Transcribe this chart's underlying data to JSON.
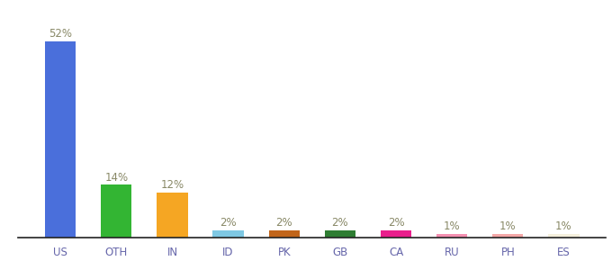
{
  "categories": [
    "US",
    "OTH",
    "IN",
    "ID",
    "PK",
    "GB",
    "CA",
    "RU",
    "PH",
    "ES"
  ],
  "values": [
    52,
    14,
    12,
    2,
    2,
    2,
    2,
    1,
    1,
    1
  ],
  "labels": [
    "52%",
    "14%",
    "12%",
    "2%",
    "2%",
    "2%",
    "2%",
    "1%",
    "1%",
    "1%"
  ],
  "bar_colors": [
    "#4a6fdb",
    "#33b533",
    "#f5a623",
    "#7ec8e3",
    "#c1651a",
    "#2e7d32",
    "#e91e8c",
    "#f48fb1",
    "#f4a7a7",
    "#f5f0dc"
  ],
  "background_color": "#ffffff",
  "label_color": "#888866",
  "label_fontsize": 8.5,
  "tick_fontsize": 8.5,
  "tick_color": "#6666aa",
  "bar_width": 0.55,
  "ylim": [
    0,
    58
  ]
}
